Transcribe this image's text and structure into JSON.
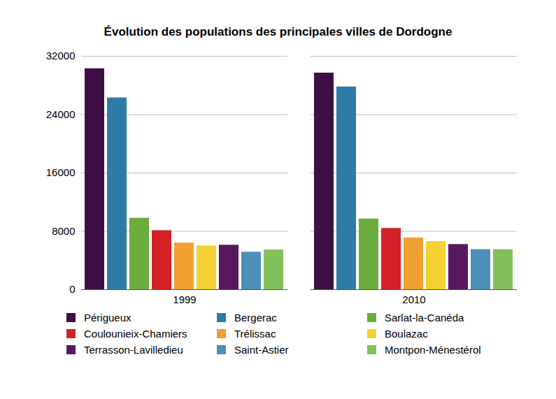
{
  "chart_data": {
    "type": "bar",
    "title": "Évolution des populations des principales villes de Dordogne",
    "categories": [
      "1999",
      "2010"
    ],
    "series": [
      {
        "name": "Périgueux",
        "color": "#3d0f45",
        "values": [
          30300,
          29700
        ]
      },
      {
        "name": "Bergerac",
        "color": "#2e7ba8",
        "values": [
          26300,
          27800
        ]
      },
      {
        "name": "Sarlat-la-Canéda",
        "color": "#6aad3c",
        "values": [
          9800,
          9700
        ]
      },
      {
        "name": "Coulounieix-Chamiers",
        "color": "#d42027",
        "values": [
          8100,
          8400
        ]
      },
      {
        "name": "Trélissac",
        "color": "#f0a030",
        "values": [
          6400,
          7100
        ]
      },
      {
        "name": "Boulazac",
        "color": "#f4d030",
        "values": [
          6000,
          6600
        ]
      },
      {
        "name": "Terrasson-Lavilledieu",
        "color": "#57185f",
        "values": [
          6100,
          6200
        ]
      },
      {
        "name": "Saint-Astier",
        "color": "#4a90b8",
        "values": [
          5150,
          5500
        ]
      },
      {
        "name": "Montpon-Ménestérol",
        "color": "#84c05a",
        "values": [
          5450,
          5500
        ]
      }
    ],
    "ylim": [
      0,
      32000
    ],
    "yticks": [
      0,
      8000,
      16000,
      24000,
      32000
    ],
    "grid": true,
    "legend": "bottom"
  }
}
